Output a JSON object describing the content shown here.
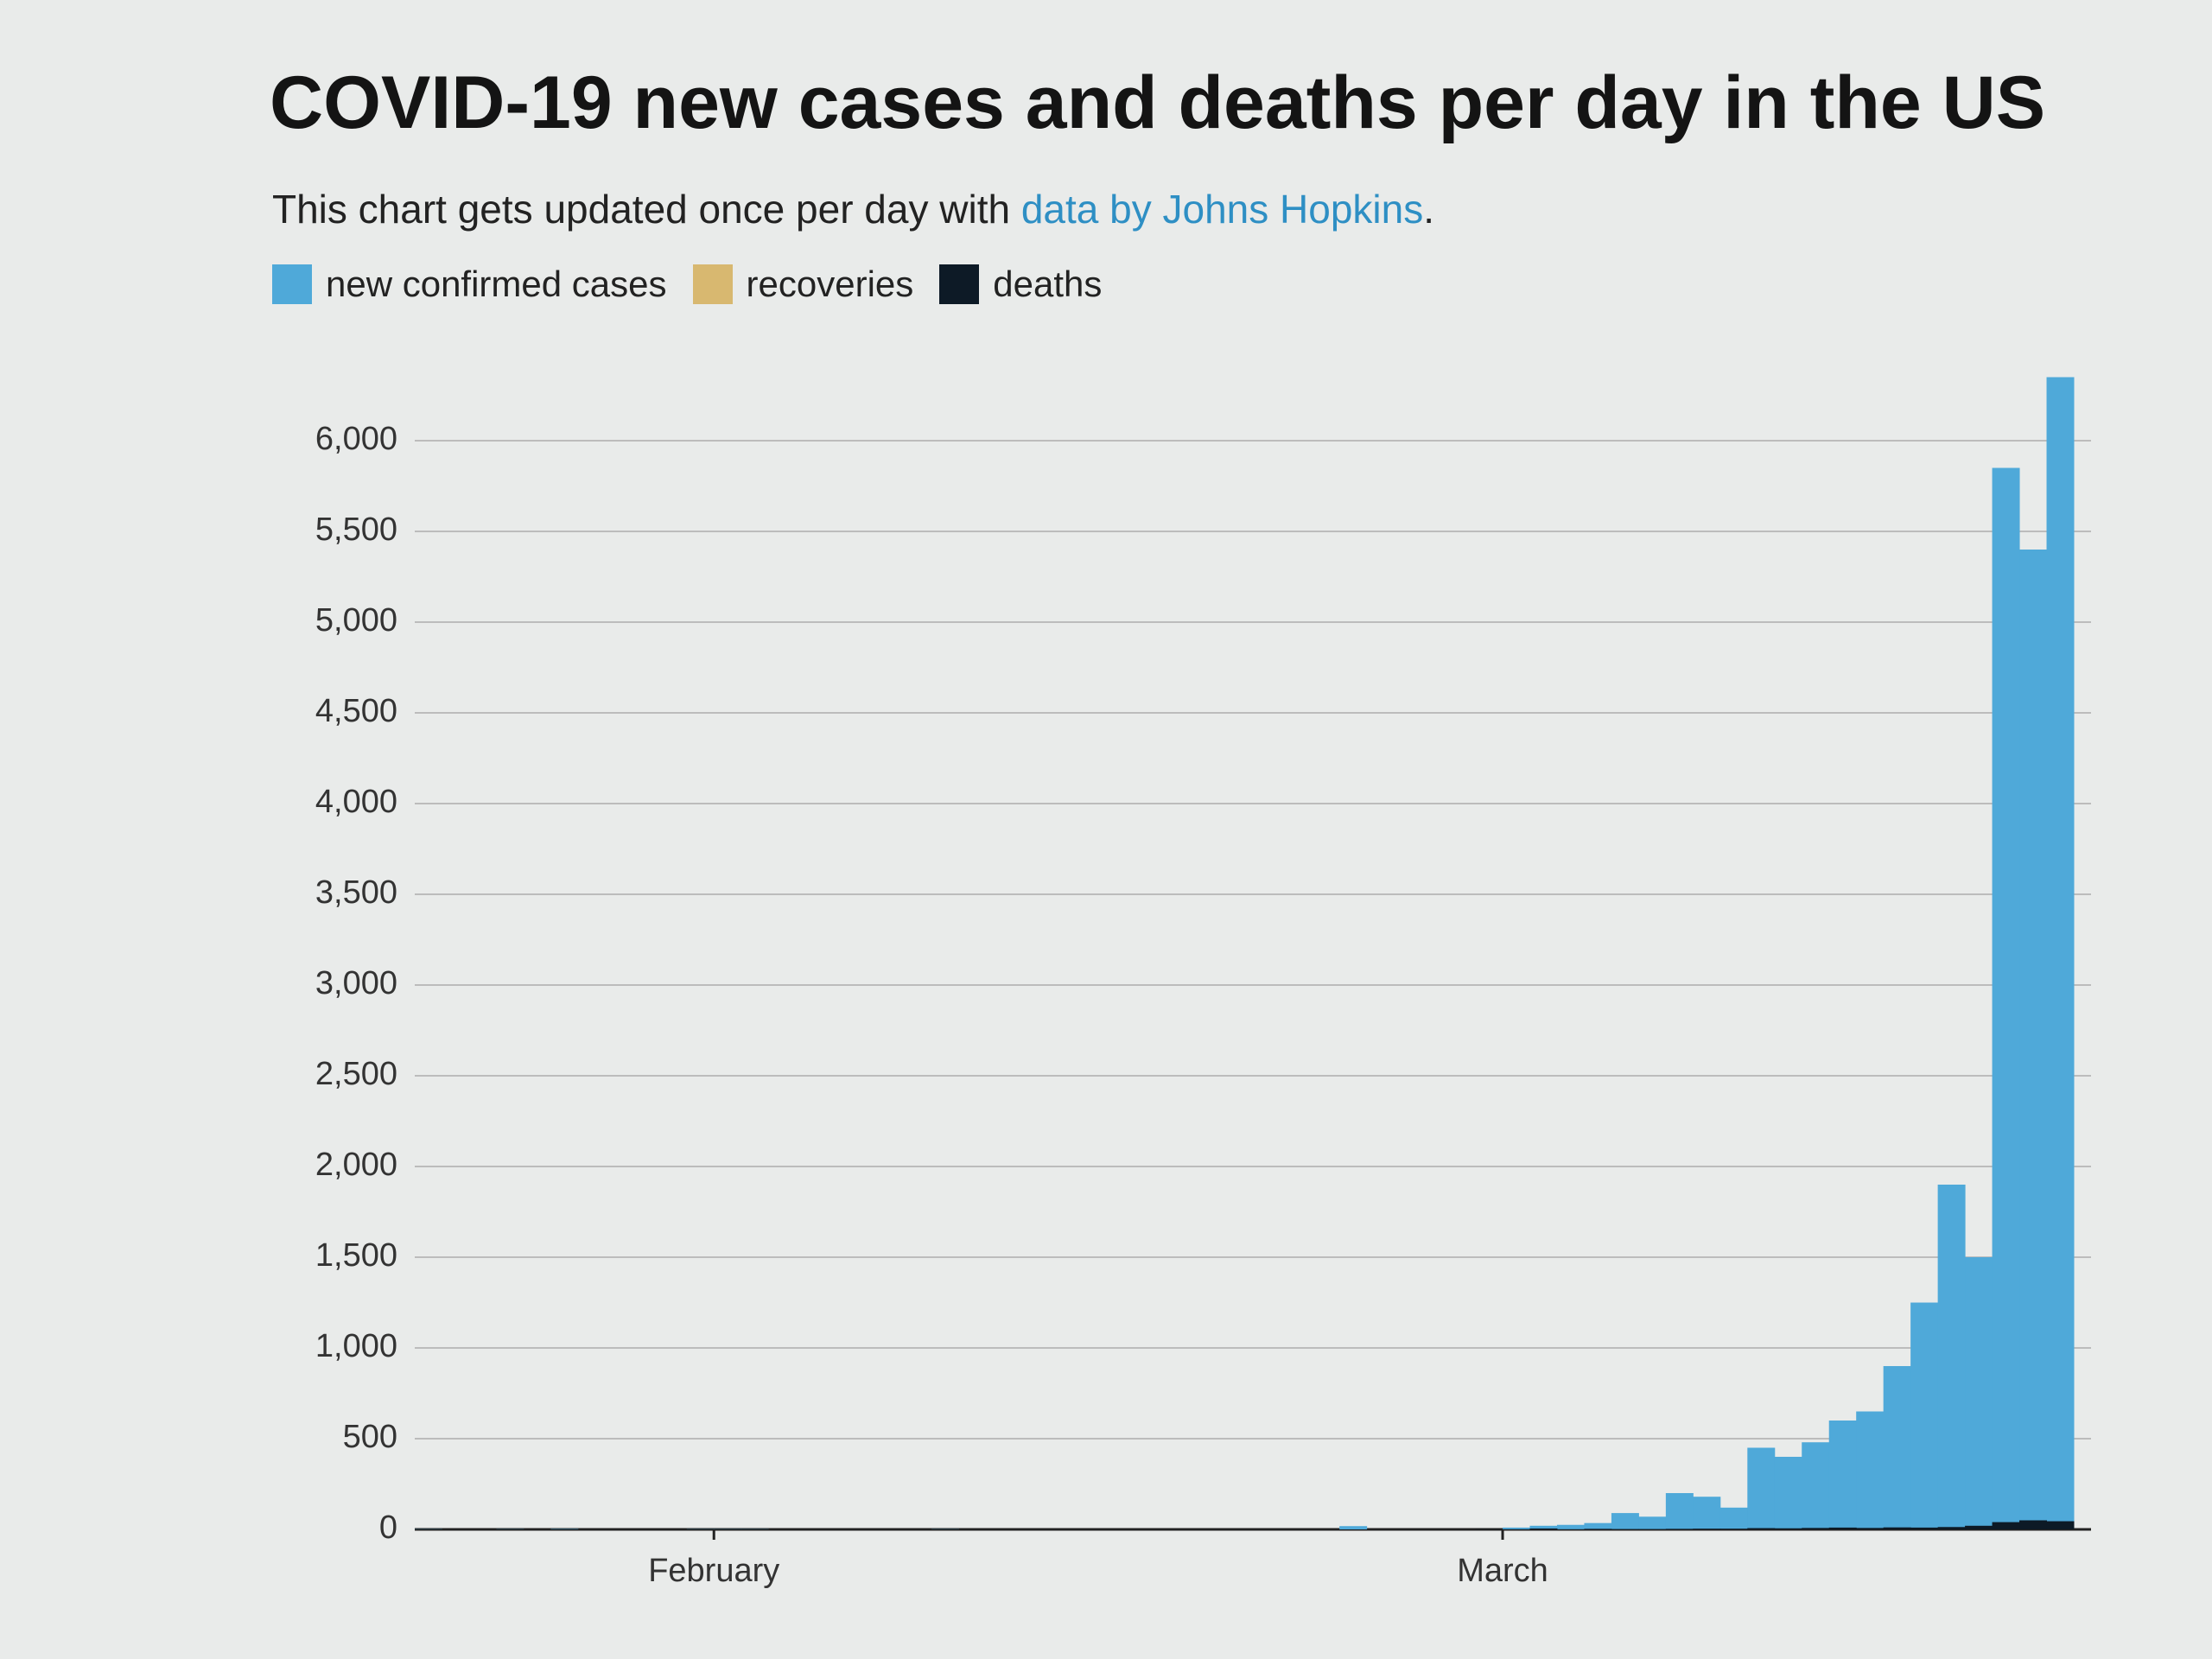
{
  "chart_data": {
    "type": "bar",
    "title": "COVID-19 new cases and deaths per day in the US",
    "subtitle": "This chart gets updated once per day with",
    "subtitle_link": "data by Johns Hopkins",
    "subtitle_end": ".",
    "categories": [
      null,
      null,
      null,
      null,
      null,
      null,
      null,
      null,
      null,
      null,
      null,
      "February",
      null,
      null,
      null,
      null,
      null,
      null,
      null,
      null,
      null,
      null,
      null,
      null,
      null,
      null,
      null,
      null,
      null,
      null,
      null,
      null,
      null,
      null,
      null,
      null,
      null,
      null,
      null,
      null,
      "March",
      null,
      null,
      null,
      null,
      null,
      null,
      null,
      null,
      null,
      null,
      null,
      null,
      null,
      null,
      null,
      null,
      null,
      null,
      null,
      null
    ],
    "series": [
      {
        "name": "new confirmed cases",
        "color": "#4fa9d9",
        "values": [
          1,
          0,
          0,
          1,
          0,
          2,
          0,
          0,
          0,
          0,
          1,
          1,
          1,
          0,
          0,
          0,
          0,
          0,
          0,
          1,
          0,
          0,
          0,
          0,
          0,
          0,
          0,
          0,
          0,
          0,
          0,
          0,
          0,
          0,
          18,
          0,
          0,
          0,
          0,
          0,
          10,
          20,
          25,
          35,
          90,
          70,
          200,
          180,
          120,
          450,
          400,
          480,
          600,
          650,
          900,
          1250,
          1900,
          1500,
          5850,
          5400,
          6350
        ]
      },
      {
        "name": "recoveries",
        "color": "#d8b870",
        "values": [
          0,
          0,
          0,
          0,
          0,
          0,
          0,
          0,
          0,
          0,
          0,
          0,
          0,
          0,
          0,
          0,
          0,
          0,
          0,
          0,
          0,
          0,
          0,
          0,
          0,
          0,
          0,
          0,
          0,
          0,
          0,
          0,
          0,
          0,
          0,
          0,
          0,
          0,
          0,
          0,
          0,
          0,
          0,
          0,
          0,
          0,
          0,
          0,
          0,
          0,
          0,
          0,
          0,
          0,
          0,
          0,
          0,
          0,
          0,
          0,
          0
        ]
      },
      {
        "name": "deaths",
        "color": "#0d1a26",
        "values": [
          0,
          0,
          0,
          0,
          0,
          0,
          0,
          0,
          0,
          0,
          0,
          0,
          0,
          0,
          0,
          0,
          0,
          0,
          0,
          0,
          0,
          0,
          0,
          0,
          0,
          0,
          0,
          0,
          0,
          0,
          0,
          0,
          0,
          0,
          0,
          0,
          0,
          0,
          0,
          1,
          1,
          5,
          1,
          3,
          2,
          2,
          3,
          4,
          4,
          7,
          6,
          8,
          10,
          8,
          11,
          10,
          13,
          20,
          40,
          50,
          45
        ]
      }
    ],
    "ylim": [
      0,
      6400
    ],
    "yticks": [
      0,
      500,
      {
        "value": 1000,
        "label": "1,000"
      },
      {
        "value": 1500,
        "label": "1,500"
      },
      {
        "value": 2000,
        "label": "2,000"
      },
      {
        "value": 2500,
        "label": "2,500"
      },
      {
        "value": 3000,
        "label": "3,000"
      },
      {
        "value": 3500,
        "label": "3,500"
      },
      {
        "value": 4000,
        "label": "4,000"
      },
      {
        "value": 4500,
        "label": "4,500"
      },
      {
        "value": 5000,
        "label": "5,000"
      },
      {
        "value": 5500,
        "label": "5,500"
      },
      {
        "value": 6000,
        "label": "6,000"
      }
    ],
    "grid": true
  }
}
